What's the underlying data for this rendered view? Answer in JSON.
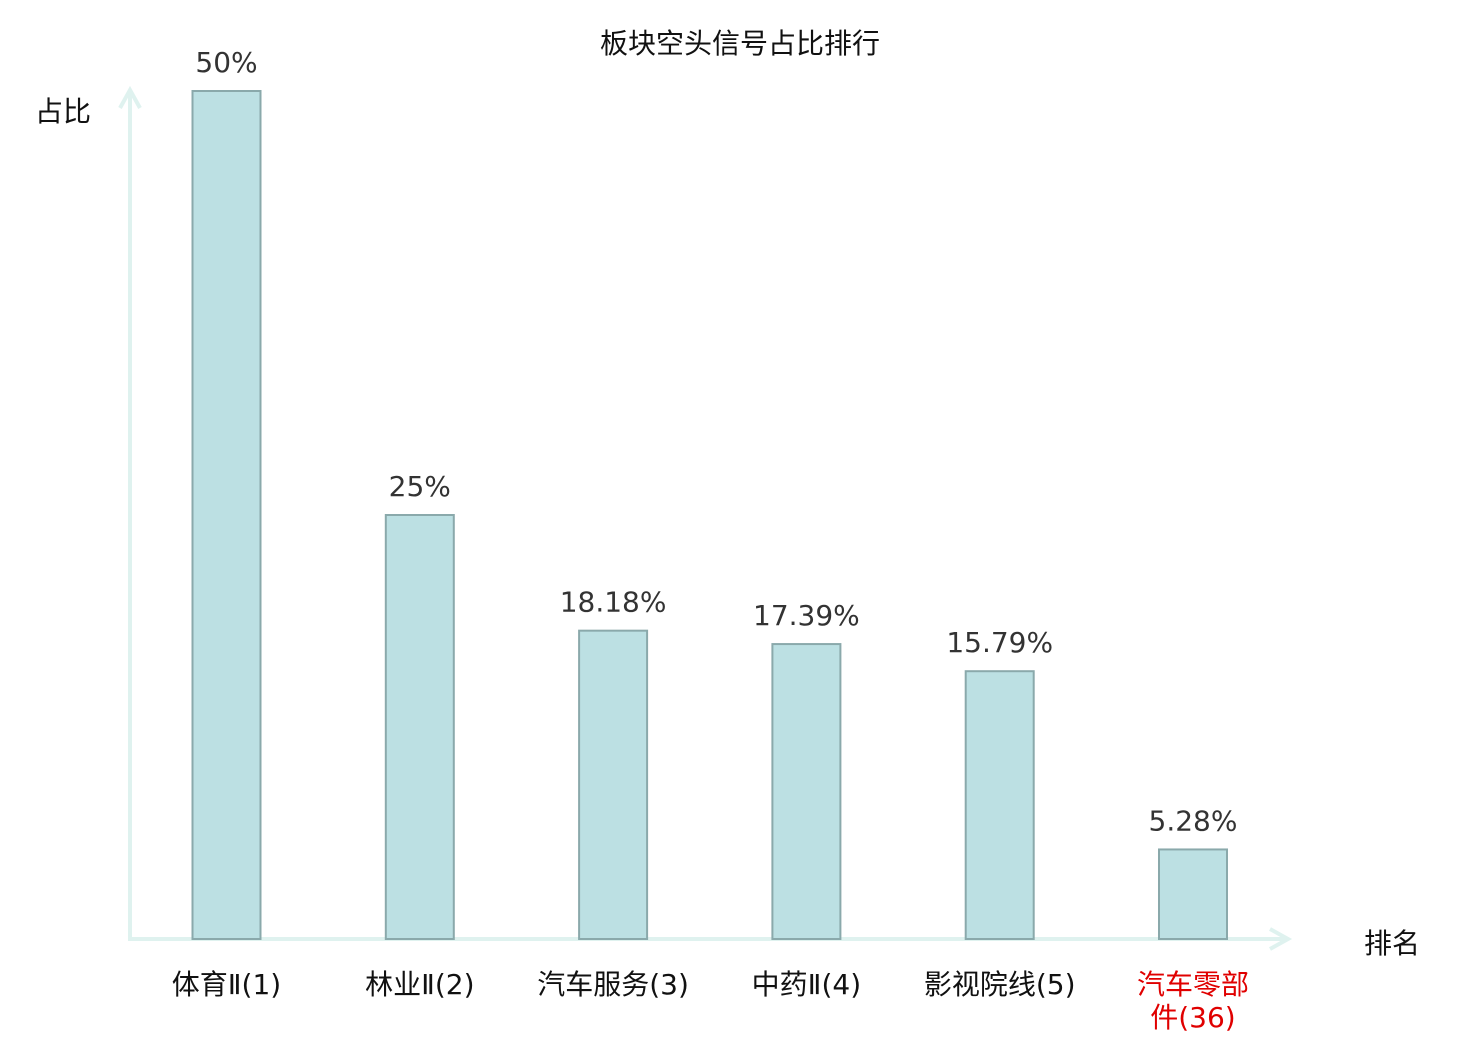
{
  "chart_data": {
    "type": "bar",
    "title": "板块空头信号占比排行",
    "xlabel": "排名",
    "ylabel": "占比",
    "categories": [
      "体育Ⅱ(1)",
      "林业Ⅱ(2)",
      "汽车服务(3)",
      "中药Ⅱ(4)",
      "影视院线(5)",
      "汽车零部件(36)"
    ],
    "values": [
      50,
      25,
      18.18,
      17.39,
      15.79,
      5.28
    ],
    "data_labels": [
      "50%",
      "25%",
      "18.18%",
      "17.39%",
      "15.79%",
      "5.28%"
    ],
    "highlighted_category": "汽车零部件(36)",
    "ylim": [
      0,
      50
    ],
    "grid": false,
    "legend": "none",
    "colors": {
      "bar_fill": "#bce0e3",
      "bar_stroke": "#8aa9ab",
      "axis": "#dff2ef",
      "text": "#111111",
      "data_label": "#333333",
      "highlight": "#e00000"
    }
  }
}
